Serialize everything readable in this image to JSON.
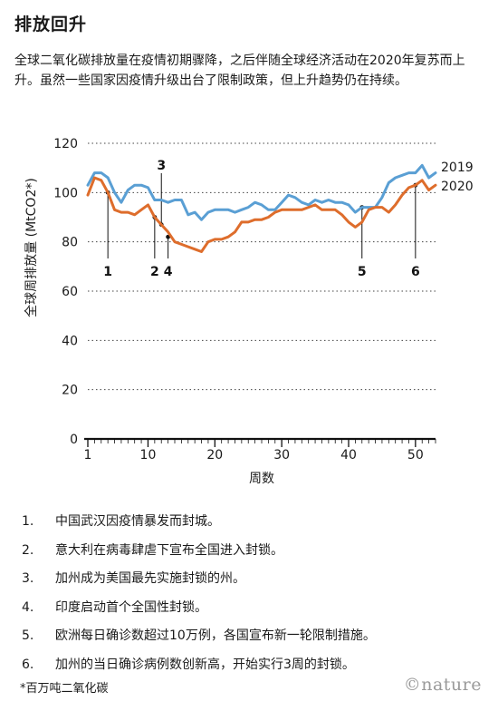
{
  "title": "排放回升",
  "subtitle": "全球二氧化碳排放量在疫情初期骤降，之后伴随全球经济活动在2020年复苏而上升。虽然一些国家因疫情升级出台了限制政策，但上升趋势仍在持续。",
  "chart_data": {
    "type": "line",
    "ylabel": "全球周排放量 (MtCO2*)",
    "xlabel": "周数",
    "ylim": [
      0,
      120
    ],
    "xlim": [
      1,
      53
    ],
    "yticks": [
      0,
      20,
      40,
      60,
      80,
      100,
      120
    ],
    "xticks": [
      1,
      10,
      20,
      30,
      40,
      50
    ],
    "series": [
      {
        "name": "2019",
        "color": "#5a9fd4",
        "x": [
          1,
          2,
          3,
          4,
          5,
          6,
          7,
          8,
          9,
          10,
          11,
          12,
          13,
          14,
          15,
          16,
          17,
          18,
          19,
          20,
          21,
          22,
          23,
          24,
          25,
          26,
          27,
          28,
          29,
          30,
          31,
          32,
          33,
          34,
          35,
          36,
          37,
          38,
          39,
          40,
          41,
          42,
          43,
          44,
          45,
          46,
          47,
          48,
          49,
          50,
          51,
          52,
          53
        ],
        "values": [
          103,
          108,
          108,
          106,
          100,
          96,
          101,
          103,
          103,
          102,
          97,
          97,
          96,
          97,
          97,
          91,
          92,
          89,
          92,
          93,
          93,
          93,
          92,
          93,
          94,
          96,
          95,
          93,
          93,
          96,
          99,
          98,
          96,
          95,
          97,
          96,
          97,
          96,
          96,
          95,
          92,
          94,
          94,
          94,
          98,
          104,
          106,
          107,
          108,
          108,
          111,
          106,
          108
        ]
      },
      {
        "name": "2020",
        "color": "#de6d2c",
        "x": [
          1,
          2,
          3,
          4,
          5,
          6,
          7,
          8,
          9,
          10,
          11,
          12,
          13,
          14,
          15,
          16,
          17,
          18,
          19,
          20,
          21,
          22,
          23,
          24,
          25,
          26,
          27,
          28,
          29,
          30,
          31,
          32,
          33,
          34,
          35,
          36,
          37,
          38,
          39,
          40,
          41,
          42,
          43,
          44,
          45,
          46,
          47,
          48,
          49,
          50,
          51,
          52,
          53
        ],
        "values": [
          99,
          106,
          105,
          100,
          93,
          92,
          92,
          91,
          93,
          95,
          90,
          87,
          84,
          80,
          79,
          78,
          77,
          76,
          80,
          81,
          81,
          82,
          84,
          88,
          88,
          89,
          89,
          90,
          92,
          93,
          93,
          93,
          93,
          94,
          95,
          93,
          93,
          93,
          91,
          88,
          86,
          88,
          93,
          94,
          94,
          92,
          95,
          99,
          102,
          103,
          105,
          101,
          103
        ]
      }
    ],
    "events": [
      {
        "label": "1",
        "x": 4,
        "y": 100
      },
      {
        "label": "2",
        "x": 11,
        "y": 90
      },
      {
        "label": "3",
        "x": 12,
        "y": 87
      },
      {
        "label": "4",
        "x": 13,
        "y": 82
      },
      {
        "label": "5",
        "x": 42,
        "y": 94
      },
      {
        "label": "6",
        "x": 50,
        "y": 103
      }
    ]
  },
  "notes": [
    {
      "num": "1.",
      "text": "中国武汉因疫情暴发而封城。"
    },
    {
      "num": "2.",
      "text": "意大利在病毒肆虐下宣布全国进入封锁。"
    },
    {
      "num": "3.",
      "text": "加州成为美国最先实施封锁的州。"
    },
    {
      "num": "4.",
      "text": "印度启动首个全国性封锁。"
    },
    {
      "num": "5.",
      "text": "欧洲每日确诊数超过10万例，各国宣布新一轮限制措施。"
    },
    {
      "num": "6.",
      "text": "加州的当日确诊病例数创新高，开始实行3周的封锁。"
    }
  ],
  "footnote": "*百万吨二氧化碳",
  "brand": "©nature"
}
